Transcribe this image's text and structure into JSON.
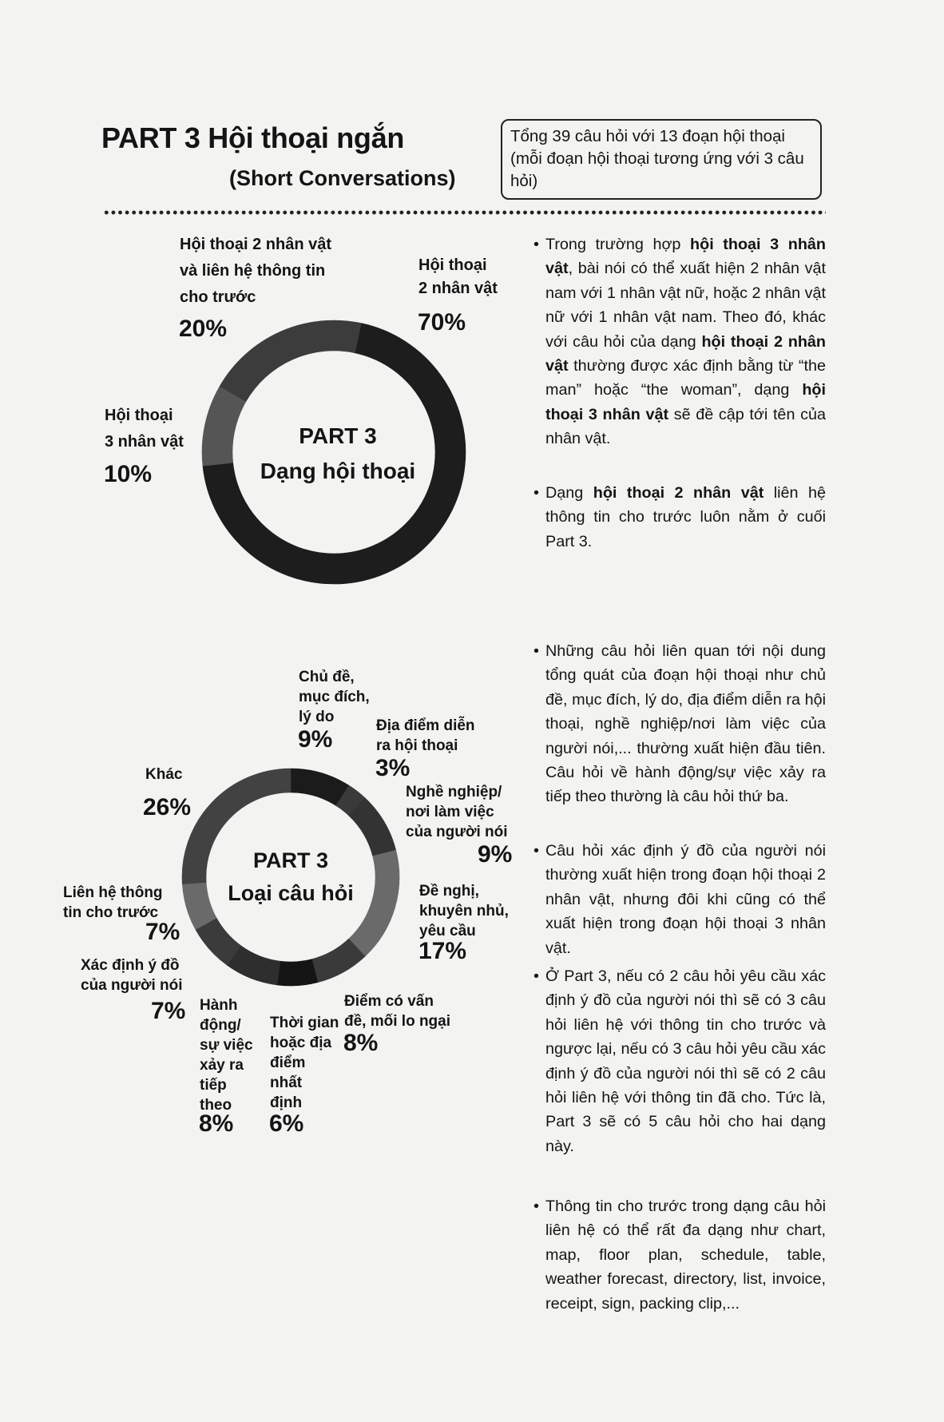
{
  "header": {
    "title": "PART 3  Hội thoại ngắn",
    "subtitle": "(Short Conversations)",
    "summary_box": "Tổng 39 câu hỏi với 13 đoạn hội thoại (mỗi đoạn hội thoại tương ứng với 3 câu hỏi)"
  },
  "chart_data": [
    {
      "type": "pie",
      "title": "PART 3",
      "subtitle": "Dạng hội thoại",
      "categories": [
        "Hội thoại 2 nhân vật",
        "Hội thoại 3 nhân vật",
        "Hội thoại 2 nhân vật và liên hệ thông tin cho trước"
      ],
      "values": [
        70,
        10,
        20
      ],
      "value_labels": [
        "70%",
        "10%",
        "20%"
      ],
      "colors": [
        "#1d1d1d",
        "#555555",
        "#3c3c3c"
      ],
      "donut": true
    },
    {
      "type": "pie",
      "title": "PART 3",
      "subtitle": "Loại câu hỏi",
      "categories": [
        "Chủ đề, mục đích, lý do",
        "Địa điểm diễn ra hội thoại",
        "Nghề nghiệp/ nơi làm việc của người nói",
        "Đề nghị, khuyên nhủ, yêu cầu",
        "Điểm có vấn đề, mối lo ngại",
        "Thời gian hoặc địa điểm nhất định",
        "Hành động/ sự việc xảy ra tiếp theo",
        "Xác định ý đồ của người nói",
        "Liên hệ thông tin cho trước",
        "Khác"
      ],
      "values": [
        9,
        3,
        9,
        17,
        8,
        6,
        8,
        7,
        7,
        26
      ],
      "value_labels": [
        "9%",
        "3%",
        "9%",
        "17%",
        "8%",
        "6%",
        "8%",
        "7%",
        "7%",
        "26%"
      ],
      "colors": [
        "#1b1b1b",
        "#3a3a3a",
        "#333333",
        "#6a6a6a",
        "#3a3a3a",
        "#151515",
        "#2e2e2e",
        "#3b3b3b",
        "#6a6a6a",
        "#424242"
      ],
      "donut": true
    }
  ],
  "chart1_labels": {
    "two": [
      "Hội thoại",
      "2 nhân vật"
    ],
    "three": [
      "Hội thoại",
      "3 nhân vật"
    ],
    "two_info": [
      "Hội thoại 2 nhân vật",
      "và liên hệ thông tin",
      "cho trước"
    ]
  },
  "chart2_labels": {
    "topic": [
      "Chủ đề,",
      "mục đích,",
      "lý do"
    ],
    "place": [
      "Địa điểm diễn",
      "ra hội thoại"
    ],
    "job": [
      "Nghề nghiệp/",
      "nơi làm việc",
      "của người nói"
    ],
    "suggest": [
      "Đề nghị,",
      "khuyên nhủ,",
      "yêu cầu"
    ],
    "problem": [
      "Điểm có vấn",
      "đề, mối lo ngại"
    ],
    "time": [
      "Thời gian",
      "hoặc địa",
      "điểm",
      "nhất",
      "định"
    ],
    "action": [
      "Hành",
      "động/",
      "sự việc",
      "xảy ra",
      "tiếp",
      "theo"
    ],
    "intent": [
      "Xác định ý đồ",
      "của người nói"
    ],
    "info": [
      "Liên hệ thông",
      "tin cho trước"
    ],
    "other": [
      "Khác"
    ]
  },
  "bullets": [
    [
      {
        "t": "Trong trường hợp "
      },
      {
        "t": "hội thoại 3 nhân vật",
        "b": true
      },
      {
        "t": ", bài nói có thể xuất hiện 2 nhân vật nam với 1 nhân vật nữ, hoặc 2 nhân vật nữ với 1 nhân vật nam. Theo đó, khác với câu hỏi của dạng "
      },
      {
        "t": "hội thoại 2 nhân vật",
        "b": true
      },
      {
        "t": " thường được xác định bằng từ “the man” hoặc “the woman”, dạng "
      },
      {
        "t": "hội thoại 3 nhân vật",
        "b": true
      },
      {
        "t": " sẽ đề cập tới tên của nhân vật."
      }
    ],
    [
      {
        "t": "Dạng "
      },
      {
        "t": "hội thoại 2 nhân vật",
        "b": true
      },
      {
        "t": " liên hệ thông tin cho trước luôn nằm ở cuối Part 3."
      }
    ],
    [
      {
        "t": "Những câu hỏi liên quan tới nội dung tổng quát của đoạn hội thoại như chủ đề, mục đích, lý do, địa điểm diễn ra hội thoại, nghề nghiệp/nơi làm việc của người nói,... thường xuất hiện đầu tiên. Câu hỏi về hành động/sự việc xảy ra tiếp theo thường là câu hỏi thứ ba."
      }
    ],
    [
      {
        "t": "Câu hỏi xác định ý đồ của người nói thường xuất hiện trong đoạn hội thoại 2 nhân vật, nhưng đôi khi cũng có thể xuất hiện trong đoạn hội thoại 3 nhân vật."
      }
    ],
    [
      {
        "t": "Ở Part 3, nếu có 2 câu hỏi yêu cầu xác định ý đồ của người nói thì sẽ có 3 câu hỏi liên hệ với thông tin cho trước và ngược lại, nếu có 3 câu hỏi yêu cầu xác định ý đồ của người nói thì sẽ có 2 câu hỏi liên hệ với thông tin đã cho. Tức là, Part 3 sẽ có 5 câu hỏi cho hai dạng này."
      }
    ],
    [
      {
        "t": "Thông tin cho trước trong dạng câu hỏi liên hệ có thể rất đa dạng như chart, map, floor plan, schedule, table, weather forecast, directory, list, invoice, receipt, sign, packing clip,..."
      }
    ]
  ],
  "bullet_symbol": "•"
}
